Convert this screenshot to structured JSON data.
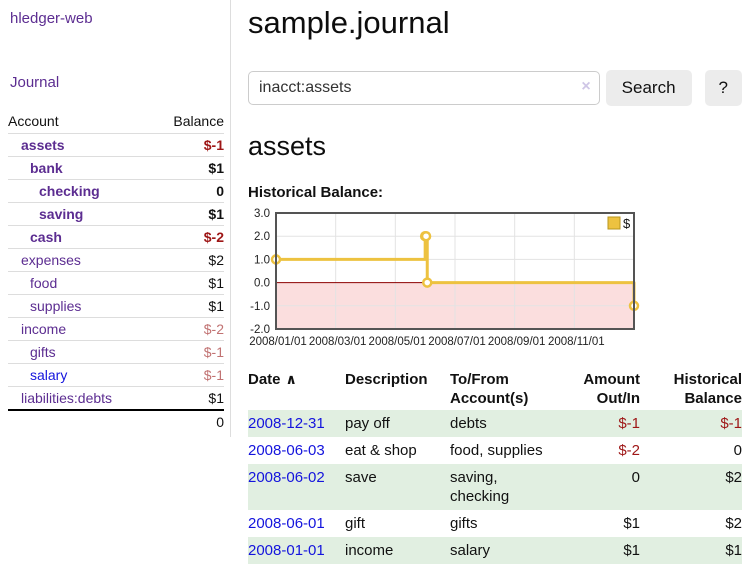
{
  "app": {
    "brand": "hledger-web"
  },
  "nav": {
    "journal": "Journal"
  },
  "page": {
    "title": "sample.journal",
    "account_heading": "assets",
    "chart_heading": "Historical Balance:"
  },
  "search": {
    "value": "inacct:assets",
    "placeholder": "",
    "clear_icon": "×",
    "button_label": "Search",
    "help_label": "?"
  },
  "sidebar": {
    "headers": {
      "account": "Account",
      "balance": "Balance"
    },
    "rows": [
      {
        "name": "assets",
        "depth": 1,
        "bold": true,
        "blue": false,
        "balance": "$-1",
        "balance_class": "neg"
      },
      {
        "name": "bank",
        "depth": 2,
        "bold": true,
        "blue": false,
        "balance": "$1",
        "balance_class": ""
      },
      {
        "name": "checking",
        "depth": 3,
        "bold": true,
        "blue": false,
        "balance": "0",
        "balance_class": ""
      },
      {
        "name": "saving",
        "depth": 3,
        "bold": true,
        "blue": false,
        "balance": "$1",
        "balance_class": ""
      },
      {
        "name": "cash",
        "depth": 2,
        "bold": true,
        "blue": false,
        "balance": "$-2",
        "balance_class": "neg"
      },
      {
        "name": "expenses",
        "depth": 1,
        "bold": false,
        "blue": false,
        "balance": "$2",
        "balance_class": ""
      },
      {
        "name": "food",
        "depth": 2,
        "bold": false,
        "blue": false,
        "balance": "$1",
        "balance_class": ""
      },
      {
        "name": "supplies",
        "depth": 2,
        "bold": false,
        "blue": false,
        "balance": "$1",
        "balance_class": ""
      },
      {
        "name": "income",
        "depth": 1,
        "bold": false,
        "blue": false,
        "balance": "$-2",
        "balance_class": "negsoft"
      },
      {
        "name": "gifts",
        "depth": 2,
        "bold": false,
        "blue": false,
        "balance": "$-1",
        "balance_class": "negsoft"
      },
      {
        "name": "salary",
        "depth": 2,
        "bold": false,
        "blue": true,
        "balance": "$-1",
        "balance_class": "negsoft"
      },
      {
        "name": "liabilities:debts",
        "depth": 1,
        "bold": false,
        "blue": false,
        "balance": "$1",
        "balance_class": ""
      }
    ],
    "total": "0"
  },
  "chart_data": {
    "type": "line",
    "title": "Historical Balance",
    "step": true,
    "series": [
      {
        "name": "$",
        "points": [
          {
            "date": "2008-01-01",
            "x": 0,
            "y": 1
          },
          {
            "date": "2008-06-01",
            "x": 5,
            "y": 2
          },
          {
            "date": "2008-06-02",
            "x": 5.03,
            "y": 2
          },
          {
            "date": "2008-06-03",
            "x": 5.07,
            "y": 0
          },
          {
            "date": "2008-12-31",
            "x": 12,
            "y": -1
          }
        ]
      }
    ],
    "xlim": [
      0,
      12
    ],
    "ylim": [
      -2,
      3
    ],
    "yticks": [
      3,
      2,
      1,
      0,
      -1,
      -2
    ],
    "ytick_labels": [
      "3.0",
      "2.0",
      "1.0",
      "0.0",
      "-1.0",
      "-2.0"
    ],
    "xticks": [
      0,
      2,
      4,
      6,
      8,
      10
    ],
    "xtick_labels": [
      "2008/01/01",
      "2008/03/01",
      "2008/05/01",
      "2008/07/01",
      "2008/09/01",
      "2008/11/01"
    ],
    "legend": {
      "label": "$",
      "position": "top-right"
    },
    "grid": true,
    "colors": {
      "line": "#edc240",
      "marker_fill": "#ffffff",
      "legend_border": "#b8961e",
      "negative_fill": "#fbdede",
      "zero_line": "#8b0000",
      "grid": "#e3e3e3",
      "border": "#545454"
    }
  },
  "register": {
    "headers": {
      "date": "Date",
      "sort_icon": "∧",
      "description": "Description",
      "account": "To/From Account(s)",
      "amount": "Amount Out/In",
      "balance": "Historical Balance"
    },
    "rows": [
      {
        "date": "2008-12-31",
        "description": "pay off",
        "accounts": "debts",
        "amount": "$-1",
        "amount_class": "neg",
        "balance": "$-1",
        "balance_class": "neg"
      },
      {
        "date": "2008-06-03",
        "description": "eat & shop",
        "accounts": "food, supplies",
        "amount": "$-2",
        "amount_class": "neg",
        "balance": "0",
        "balance_class": ""
      },
      {
        "date": "2008-06-02",
        "description": "save",
        "accounts": "saving, checking",
        "amount": "0",
        "amount_class": "",
        "balance": "$2",
        "balance_class": ""
      },
      {
        "date": "2008-06-01",
        "description": "gift",
        "accounts": "gifts",
        "amount": "$1",
        "amount_class": "",
        "balance": "$2",
        "balance_class": ""
      },
      {
        "date": "2008-01-01",
        "description": "income",
        "accounts": "salary",
        "amount": "$1",
        "amount_class": "",
        "balance": "$1",
        "balance_class": ""
      }
    ]
  },
  "colors": {
    "purple_link": "#5c2d91",
    "blue_link": "#1414dd",
    "negative_strong": "#9e1616",
    "negative_soft": "#c17272",
    "row_stripe_green": "#e1efe1"
  }
}
